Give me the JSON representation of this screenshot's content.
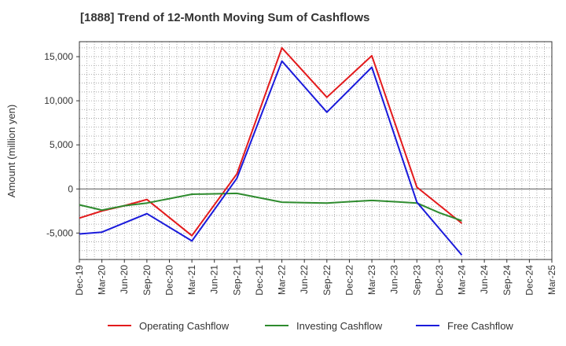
{
  "chart_data": {
    "type": "line",
    "title": "[1888]  Trend of 12-Month Moving Sum of Cashflows",
    "xlabel": "",
    "ylabel": "Amount (million yen)",
    "categories": [
      "Dec-19",
      "Mar-20",
      "Jun-20",
      "Sep-20",
      "Dec-20",
      "Mar-21",
      "Jun-21",
      "Sep-21",
      "Dec-21",
      "Mar-22",
      "Jun-22",
      "Sep-22",
      "Dec-22",
      "Mar-23",
      "Jun-23",
      "Sep-23",
      "Dec-23",
      "Mar-24",
      "Jun-24",
      "Sep-24",
      "Dec-24",
      "Mar-25"
    ],
    "ylim": [
      -8000,
      16700
    ],
    "yticks": [
      -5000,
      0,
      5000,
      10000,
      15000
    ],
    "ytick_labels": [
      "-5,000",
      "0",
      "5,000",
      "10,000",
      "15,000"
    ],
    "grid": true,
    "legend_position": "bottom",
    "series": [
      {
        "name": "Operating Cashflow",
        "color": "#e31a1c",
        "values": [
          -3300,
          -2500,
          -1900,
          -1200,
          null,
          -5300,
          null,
          1700,
          null,
          16000,
          null,
          10400,
          null,
          15100,
          null,
          200,
          null,
          -3900,
          null,
          null,
          null,
          null
        ]
      },
      {
        "name": "Investing Cashflow",
        "color": "#2e8b2e",
        "values": [
          -1800,
          -2400,
          -1900,
          -1600,
          -1100,
          -600,
          -550,
          -500,
          -1000,
          -1500,
          -1550,
          -1600,
          -1450,
          -1300,
          -1450,
          -1600,
          -2700,
          -3600,
          null,
          null,
          null,
          null
        ]
      },
      {
        "name": "Free Cashflow",
        "color": "#1a1adb",
        "values": [
          -5100,
          -4900,
          null,
          -2800,
          null,
          -5900,
          null,
          1200,
          null,
          14500,
          null,
          8700,
          null,
          13800,
          null,
          -1500,
          null,
          -7500,
          null,
          null,
          null,
          null
        ]
      }
    ]
  }
}
